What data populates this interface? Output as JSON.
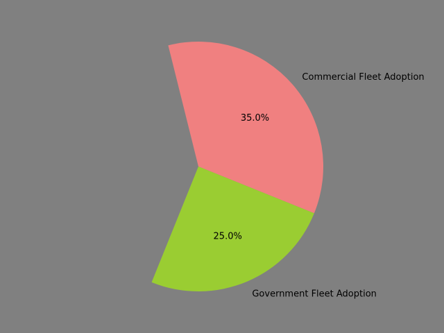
{
  "chart_data": {
    "type": "pie",
    "title": "",
    "slices": [
      {
        "label": "Commercial Fleet Adoption",
        "value": 35.0,
        "pct_text": "35.0%",
        "color": "#f08080"
      },
      {
        "label": "Government Fleet Adoption",
        "value": 25.0,
        "pct_text": "25.0%",
        "color": "#9acd32"
      }
    ],
    "total_implied": 100,
    "unfilled_portion": "remaining 40% not drawn (blank)",
    "start_angle_deg": 104,
    "direction": "clockwise",
    "legend": "none"
  },
  "colors": {
    "background": "#808080"
  }
}
